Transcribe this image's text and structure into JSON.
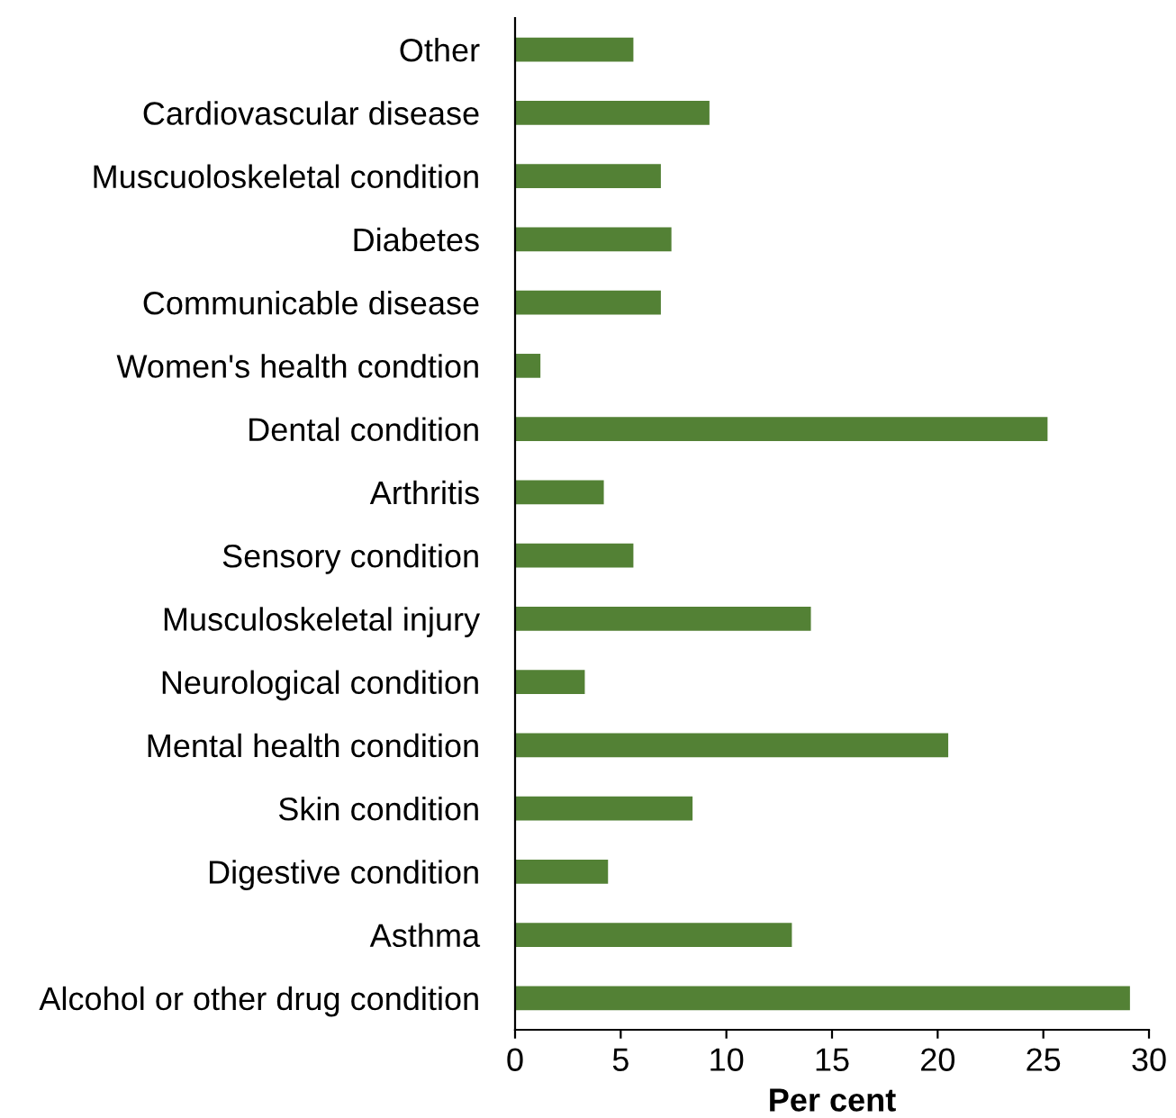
{
  "chart_data": {
    "type": "bar",
    "orientation": "horizontal",
    "xlabel": "Per cent",
    "categories": [
      "Other",
      "Cardiovascular disease",
      "Muscuoloskeletal condition",
      "Diabetes",
      "Communicable disease",
      "Women's health condtion",
      "Dental condition",
      "Arthritis",
      "Sensory condition",
      "Musculoskeletal injury",
      "Neurological condition",
      "Mental health condition",
      "Skin condition",
      "Digestive condition",
      "Asthma",
      "Alcohol or other drug condition"
    ],
    "values": [
      5.6,
      9.2,
      6.9,
      7.4,
      6.9,
      1.2,
      25.2,
      4.2,
      5.6,
      14.0,
      3.3,
      20.5,
      8.4,
      4.4,
      13.1,
      29.1
    ],
    "color": "#538135",
    "xlim": [
      0,
      30
    ],
    "xticks": [
      0,
      5,
      10,
      15,
      20,
      25,
      30
    ],
    "grid": false,
    "legend": false
  }
}
